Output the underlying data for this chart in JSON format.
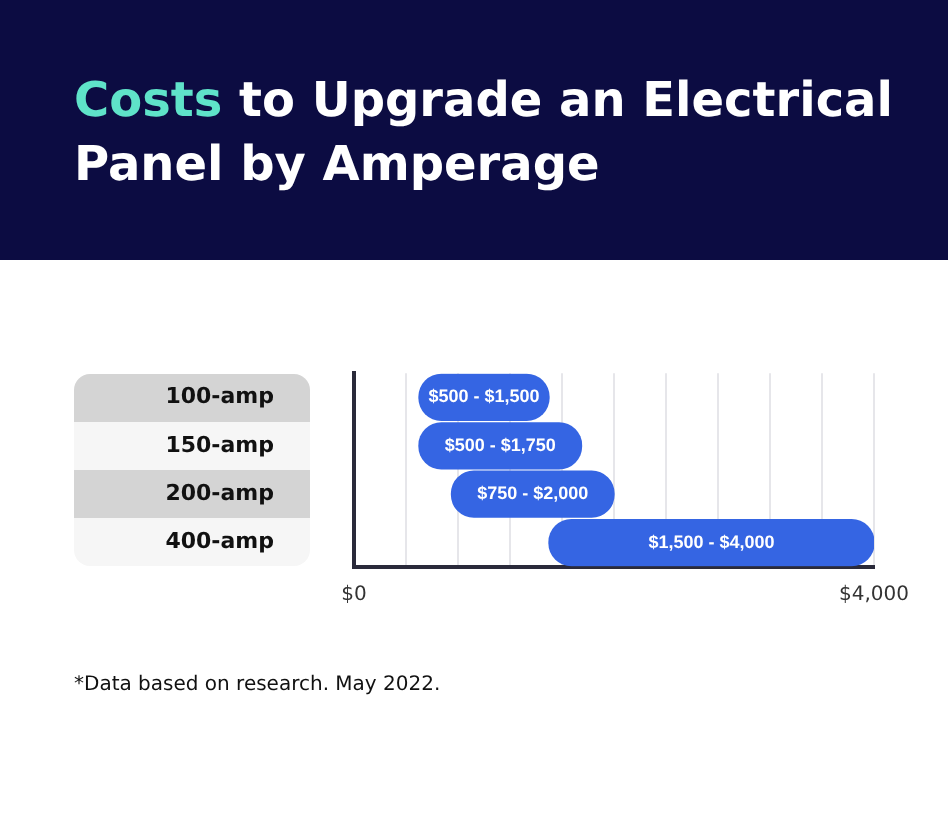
{
  "chart_data": {
    "type": "bar",
    "orientation": "horizontal",
    "title": "Costs to Upgrade an Electrical Panel by Amperage",
    "categories": [
      "100-amp",
      "150-amp",
      "200-amp",
      "400-amp"
    ],
    "base": [
      500,
      500,
      750,
      1500
    ],
    "values": [
      1000,
      1250,
      1250,
      2500
    ],
    "color": "#3565e3",
    "xlim": [
      0,
      4000
    ],
    "xticks": [
      {
        "value": 0,
        "label": "$0"
      },
      {
        "value": 400,
        "label": null
      },
      {
        "value": 800,
        "label": null
      },
      {
        "value": 1200,
        "label": null
      },
      {
        "value": 1600,
        "label": null
      },
      {
        "value": 2000,
        "label": null
      },
      {
        "value": 2400,
        "label": null
      },
      {
        "value": 2800,
        "label": null
      },
      {
        "value": 3200,
        "label": null
      },
      {
        "value": 3600,
        "label": null
      },
      {
        "value": 4000,
        "label": "$4,000"
      }
    ],
    "grid": "x",
    "annotations": [
      {
        "text": "$500 - $1,500",
        "x": 1000,
        "y": "100-amp"
      },
      {
        "text": "$500 - $1,750",
        "x": 1125,
        "y": "150-amp"
      },
      {
        "text": "$750 - $2,000",
        "x": 1375,
        "y": "200-amp"
      },
      {
        "text": "$1,500 - $4,000",
        "x": 2750,
        "y": "400-amp"
      },
      "*Data based on research. May 2022."
    ]
  }
}
